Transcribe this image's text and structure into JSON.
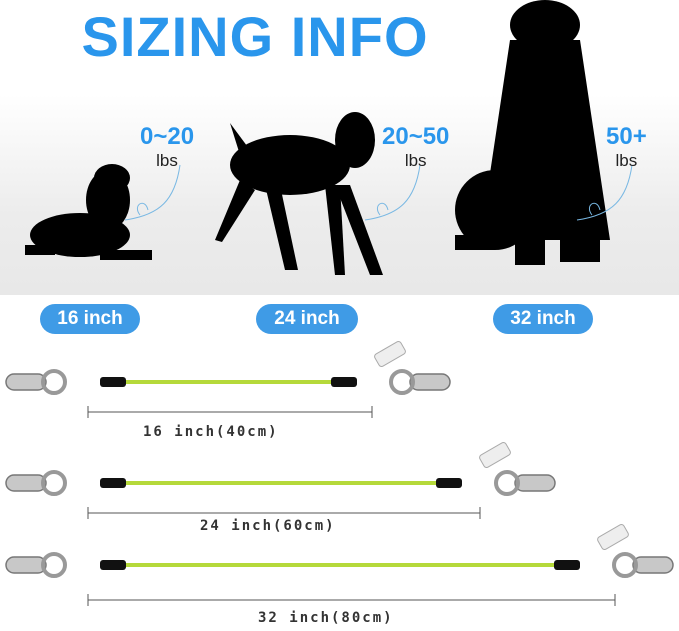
{
  "title": "SIZING INFO",
  "sizes": [
    {
      "weight": "0~20",
      "unit": "lbs",
      "pill": "16 inch",
      "length": "16 inch(40cm)"
    },
    {
      "weight": "20~50",
      "unit": "lbs",
      "pill": "24 inch",
      "length": "24 inch(60cm)"
    },
    {
      "weight": "50+",
      "unit": "lbs",
      "pill": "32 inch",
      "length": "32 inch(80cm)"
    }
  ],
  "colors": {
    "accent": "#2a96ec",
    "pill": "#3f9be6",
    "cable": "#b5d93a"
  }
}
